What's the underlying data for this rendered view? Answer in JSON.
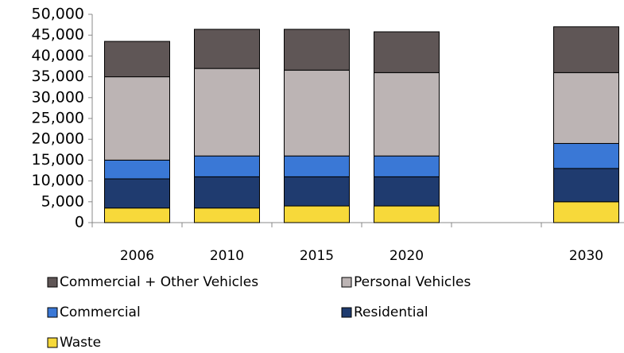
{
  "chart_data": {
    "type": "stacked_bar",
    "categories": [
      "2006",
      "2010",
      "2015",
      "2020",
      null,
      "2030"
    ],
    "series": [
      {
        "name": "Waste",
        "color": "#f7d93a",
        "values": [
          3500,
          3500,
          4000,
          4000,
          null,
          5000
        ]
      },
      {
        "name": "Residential",
        "color": "#1f3b6f",
        "values": [
          7000,
          7500,
          7000,
          7000,
          null,
          8000
        ]
      },
      {
        "name": "Commercial",
        "color": "#3a78d6",
        "values": [
          4500,
          5000,
          5000,
          5000,
          null,
          6000
        ]
      },
      {
        "name": "Personal Vehicles",
        "color": "#bcb4b4",
        "values": [
          20000,
          21000,
          20600,
          20000,
          null,
          17000
        ]
      },
      {
        "name": "Commercial + Other Vehicles",
        "color": "#5f5656",
        "values": [
          8500,
          9400,
          9800,
          9800,
          null,
          11000
        ]
      }
    ],
    "ylim": [
      0,
      50000
    ],
    "yticks": [
      0,
      {
        "value": 5000,
        "label": "5,000"
      },
      {
        "value": 10000,
        "label": "10,000"
      },
      {
        "value": 15000,
        "label": "15,000"
      },
      {
        "value": 20000,
        "label": "20,000"
      },
      {
        "value": 25000,
        "label": "25,000"
      },
      {
        "value": 30000,
        "label": "30,000"
      },
      {
        "value": 35000,
        "label": "35,000"
      },
      {
        "value": 40000,
        "label": "40,000"
      },
      {
        "value": 45000,
        "label": "45,000"
      },
      {
        "value": 50000,
        "label": "50,000"
      }
    ],
    "grid": false
  }
}
